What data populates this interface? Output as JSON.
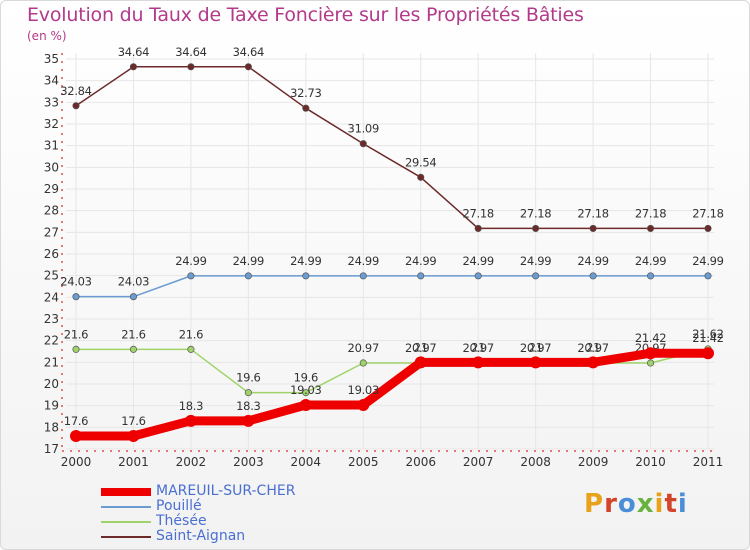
{
  "title": "Evolution du Taux de Taxe Foncière sur les Propriétés Bâties",
  "unit": "(en %)",
  "logo": {
    "letters": [
      "P",
      "r",
      "o",
      "x",
      "i",
      "t",
      "i"
    ],
    "colors": [
      "#e8a11b",
      "#d2452b",
      "#4a8ed8",
      "#6ab23f",
      "#e8a11b",
      "#d2452b",
      "#4a8ed8"
    ]
  },
  "chart_data": {
    "type": "line",
    "title": "Evolution du Taux de Taxe Foncière sur les Propriétés Bâties",
    "ylabel": "(en %)",
    "xlabel": "",
    "ylim": [
      17,
      35
    ],
    "yticks": [
      17,
      18,
      19,
      20,
      21,
      22,
      23,
      24,
      25,
      26,
      27,
      28,
      29,
      30,
      31,
      32,
      33,
      34,
      35
    ],
    "categories": [
      "2000",
      "2001",
      "2002",
      "2003",
      "2004",
      "2005",
      "2006",
      "2007",
      "2008",
      "2009",
      "2010",
      "2011"
    ],
    "legend_position": "bottom-left",
    "series": [
      {
        "name": "Saint-Aignan",
        "color": "#6d2a2a",
        "values": [
          32.84,
          34.64,
          34.64,
          34.64,
          32.73,
          31.09,
          29.54,
          27.18,
          27.18,
          27.18,
          27.18,
          27.18
        ],
        "labels": [
          "32.84",
          "34.64",
          "34.64",
          "34.64",
          "32.73",
          "31.09",
          "29.54",
          "27.18",
          "27.18",
          "27.18",
          "27.18",
          "27.18"
        ]
      },
      {
        "name": "Pouillé",
        "color": "#6a9bd1",
        "values": [
          24.03,
          24.03,
          24.99,
          24.99,
          24.99,
          24.99,
          24.99,
          24.99,
          24.99,
          24.99,
          24.99,
          24.99
        ],
        "labels": [
          "24.03",
          "24.03",
          "24.99",
          "24.99",
          "24.99",
          "24.99",
          "24.99",
          "24.99",
          "24.99",
          "24.99",
          "24.99",
          "24.99"
        ]
      },
      {
        "name": "Thésée",
        "color": "#9fd36a",
        "values": [
          21.6,
          21.6,
          21.6,
          19.6,
          19.6,
          20.97,
          20.97,
          20.97,
          20.97,
          20.97,
          20.97,
          21.62
        ],
        "labels": [
          "21.6",
          "21.6",
          "21.6",
          "19.6",
          "19.6",
          "20.97",
          "20.97",
          "20.97",
          "20.97",
          "20.97",
          "20.97",
          "21.62"
        ]
      },
      {
        "name": "MAREUIL-SUR-CHER",
        "color": "#ee0000",
        "values": [
          17.6,
          17.6,
          18.3,
          18.3,
          19.03,
          19.03,
          21.0,
          21.0,
          21.0,
          21.0,
          21.42,
          21.42
        ],
        "labels": [
          "17.6",
          "17.6",
          "18.3",
          "18.3",
          "19.03",
          "19.03",
          "21",
          "21",
          "21",
          "21",
          "21.42",
          "21.42"
        ]
      }
    ],
    "legend": [
      "MAREUIL-SUR-CHER",
      "Pouillé",
      "Thésée",
      "Saint-Aignan"
    ]
  }
}
